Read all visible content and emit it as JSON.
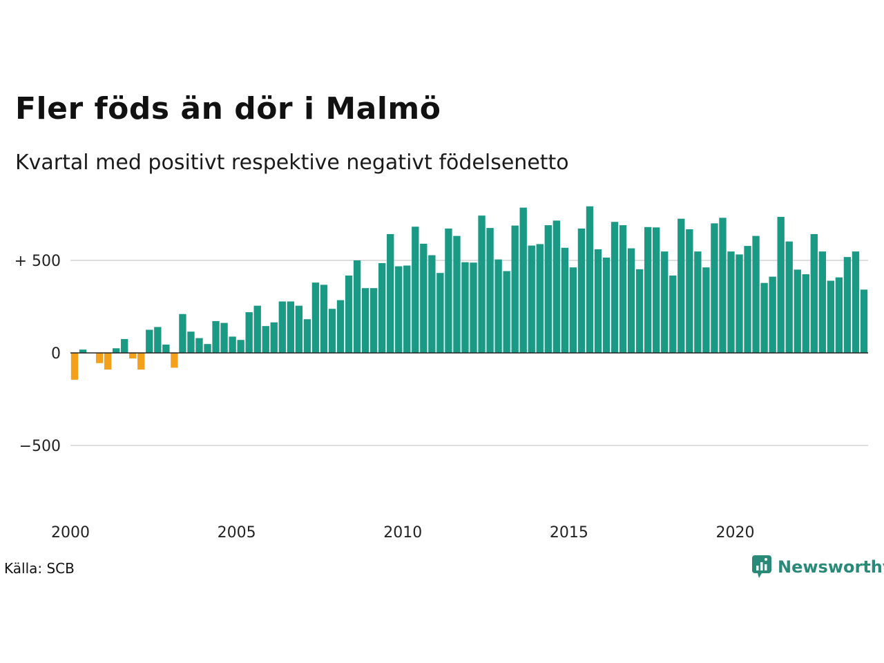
{
  "title": "Fler föds än dör i Malmö",
  "subtitle": "Kvartal med positivt respektive negativt födelsenetto",
  "source": "Källa: SCB",
  "brand": "Newsworthy",
  "colors": {
    "positive": "#1a9a85",
    "negative": "#f5a01a",
    "grid": "#dddddd",
    "axis": "#222222",
    "brand": "#2a8a78"
  },
  "chart_data": {
    "type": "bar",
    "title": "Fler föds än dör i Malmö",
    "subtitle": "Kvartal med positivt respektive negativt födelsenetto",
    "xlabel": "",
    "ylabel": "",
    "x_start": 2000,
    "periods_per_year": 4,
    "xlim": [
      2000,
      2024
    ],
    "ylim": [
      -800,
      900
    ],
    "y_ticks": [
      {
        "value": 500,
        "label": "+ 500"
      },
      {
        "value": 0,
        "label": "0"
      },
      {
        "value": -500,
        "label": "−500"
      }
    ],
    "x_ticks": [
      {
        "value": 2000,
        "label": "2000"
      },
      {
        "value": 2005,
        "label": "2005"
      },
      {
        "value": 2010,
        "label": "2010"
      },
      {
        "value": 2015,
        "label": "2015"
      },
      {
        "value": 2020,
        "label": "2020"
      }
    ],
    "grid": true,
    "values": [
      -145,
      18,
      2,
      -55,
      -90,
      25,
      75,
      -30,
      -90,
      125,
      140,
      45,
      -80,
      210,
      115,
      80,
      48,
      172,
      162,
      88,
      70,
      220,
      255,
      145,
      165,
      278,
      278,
      255,
      182,
      380,
      368,
      238,
      285,
      418,
      500,
      350,
      350,
      485,
      642,
      468,
      472,
      682,
      590,
      528,
      432,
      672,
      632,
      490,
      488,
      742,
      675,
      505,
      442,
      688,
      785,
      580,
      588,
      690,
      715,
      568,
      462,
      672,
      792,
      560,
      515,
      708,
      690,
      565,
      452,
      680,
      678,
      548,
      418,
      725,
      668,
      548,
      462,
      700,
      730,
      548,
      532,
      578,
      632,
      378,
      412,
      735,
      602,
      450,
      425,
      642,
      548,
      390,
      408,
      518,
      548,
      342
    ]
  }
}
